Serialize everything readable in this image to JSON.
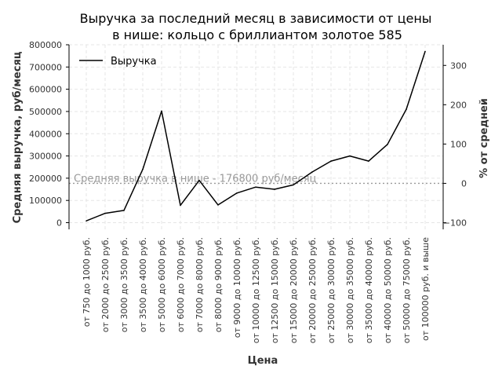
{
  "chart_data": {
    "type": "line",
    "title_line1": "Выручка за последний месяц в зависимости от цены",
    "title_line2": "в нише: кольцо с бриллиантом золотое 585",
    "xlabel": "Цена",
    "ylabel": "Средняя выручка, руб/месяц",
    "y2label": "% от средней",
    "categories": [
      "от 750 до 1000 руб.",
      "от 2000 до 2500 руб.",
      "от 3000 до 3500 руб.",
      "от 3500 до 4000 руб.",
      "от 5000 до 6000 руб.",
      "от 6000 до 7000 руб.",
      "от 7000 до 8000 руб.",
      "от 8000 до 9000 руб.",
      "от 9000 до 10000 руб.",
      "от 10000 до 12500 руб.",
      "от 12500 до 15000 руб.",
      "от 15000 до 20000 руб.",
      "от 20000 до 25000 руб.",
      "от 25000 до 30000 руб.",
      "от 30000 до 35000 руб.",
      "от 35000 до 40000 руб.",
      "от 40000 до 50000 руб.",
      "от 50000 до 75000 руб.",
      "от 100000 руб. и выше"
    ],
    "series": [
      {
        "name": "Выручка",
        "color": "#000000",
        "values": [
          8000,
          42000,
          55000,
          240000,
          502000,
          78000,
          190000,
          80000,
          133000,
          160000,
          150000,
          170000,
          228000,
          277000,
          300000,
          277000,
          352000,
          510000,
          770000
        ]
      }
    ],
    "ylim": [
      -30000,
      800000
    ],
    "yticks": [
      0,
      100000,
      200000,
      300000,
      400000,
      500000,
      600000,
      700000,
      800000
    ],
    "y2ticks": [
      -100,
      0,
      100,
      200,
      300
    ],
    "reference_line": {
      "value": 176800,
      "label": "Средняя выручка в нише - 176800 руб/месяц"
    },
    "grid": true,
    "legend_position": "top-left"
  }
}
